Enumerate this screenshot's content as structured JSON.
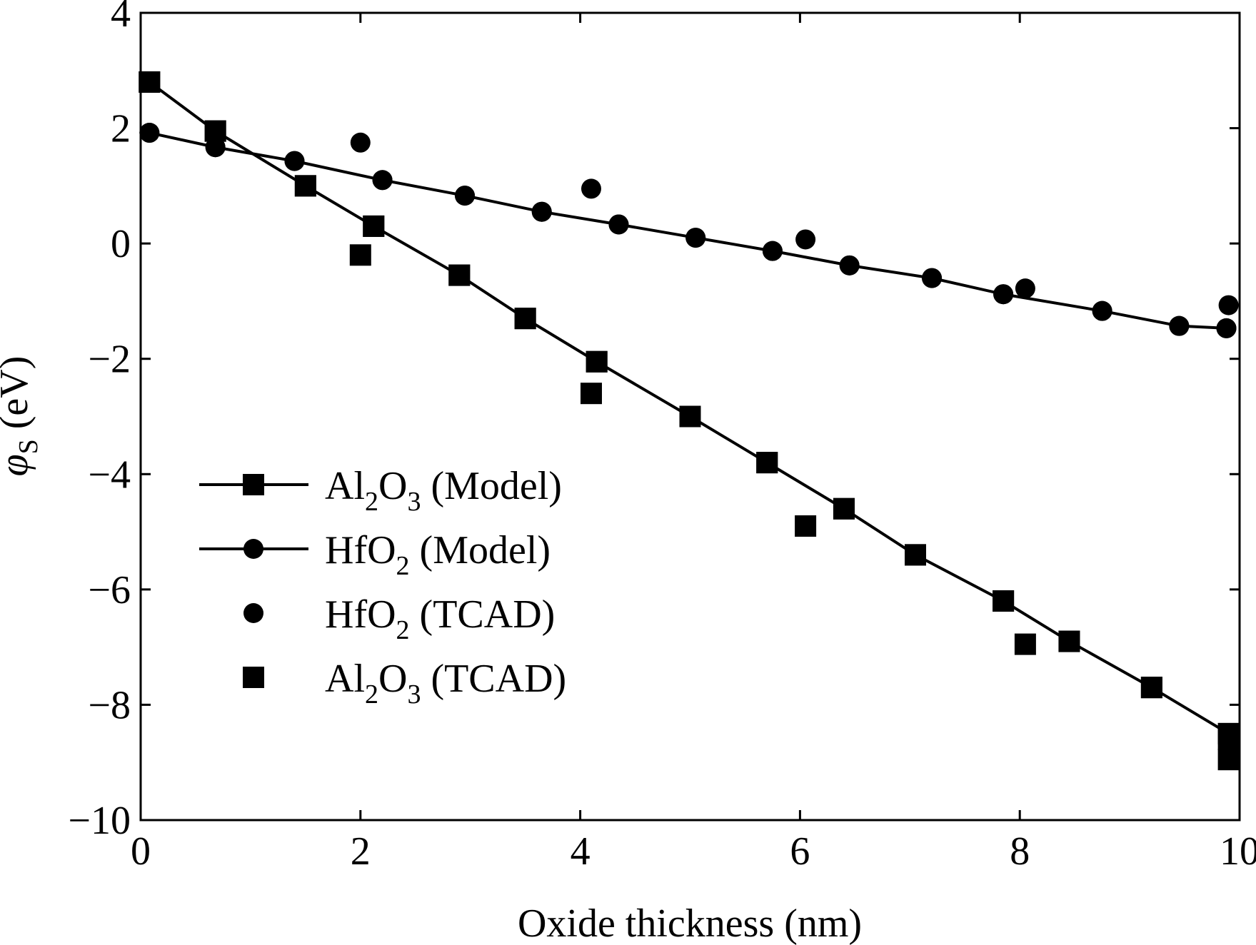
{
  "chart_data": {
    "type": "line",
    "xlabel": "Oxide thickness (nm)",
    "ylabel": {
      "symbol": "φ",
      "subscript": "S",
      "unit": "(eV)"
    },
    "xlim": [
      0,
      10
    ],
    "ylim": [
      -10,
      4
    ],
    "xticks": [
      0,
      2,
      4,
      6,
      8,
      10
    ],
    "yticks": [
      -10,
      -8,
      -6,
      -4,
      -2,
      0,
      2,
      4
    ],
    "xtick_labels": [
      "0",
      "2",
      "4",
      "6",
      "8",
      "10"
    ],
    "ytick_labels": [
      "−10",
      "−8",
      "−6",
      "−4",
      "−2",
      "0",
      "2",
      "4"
    ],
    "grid": false,
    "legend_position": "center-left",
    "series": [
      {
        "name": "Al2O3 (Model)",
        "legend": {
          "base": "Al",
          "sub1": "2",
          "mid": "O",
          "sub2": "3",
          "suffix": " (Model)"
        },
        "style": "line-square",
        "x": [
          0.08,
          0.68,
          1.5,
          2.12,
          2.9,
          3.5,
          4.15,
          5.0,
          5.7,
          6.4,
          7.05,
          7.85,
          8.45,
          9.2,
          9.9
        ],
        "y": [
          2.8,
          1.95,
          1.0,
          0.3,
          -0.55,
          -1.3,
          -2.05,
          -3.0,
          -3.8,
          -4.6,
          -5.4,
          -6.2,
          -6.9,
          -7.7,
          -8.5
        ]
      },
      {
        "name": "HfO2 (Model)",
        "legend": {
          "base": "Hf",
          "sub1": "",
          "mid": "O",
          "sub2": "2",
          "suffix": " (Model)"
        },
        "style": "line-circle",
        "x": [
          0.08,
          0.68,
          1.4,
          2.2,
          2.95,
          3.65,
          4.35,
          5.05,
          5.75,
          6.45,
          7.2,
          7.85,
          8.75,
          9.45,
          9.88
        ],
        "y": [
          1.92,
          1.67,
          1.43,
          1.1,
          0.83,
          0.55,
          0.33,
          0.1,
          -0.13,
          -0.38,
          -0.6,
          -0.88,
          -1.17,
          -1.43,
          -1.47
        ]
      },
      {
        "name": "HfO2 (TCAD)",
        "legend": {
          "base": "Hf",
          "sub1": "",
          "mid": "O",
          "sub2": "2",
          "suffix": " (TCAD)"
        },
        "style": "circle",
        "x": [
          0.08,
          0.68,
          1.4,
          2.0,
          2.2,
          2.95,
          3.65,
          4.1,
          4.35,
          5.05,
          5.75,
          6.05,
          6.45,
          7.2,
          7.85,
          8.05,
          8.75,
          9.45,
          9.88,
          9.9
        ],
        "y": [
          1.92,
          1.67,
          1.43,
          1.75,
          1.1,
          0.83,
          0.55,
          0.95,
          0.33,
          0.1,
          -0.13,
          0.07,
          -0.38,
          -0.6,
          -0.88,
          -0.78,
          -1.17,
          -1.43,
          -1.47,
          -1.07
        ]
      },
      {
        "name": "Al2O3 (TCAD)",
        "legend": {
          "base": "Al",
          "sub1": "2",
          "mid": "O",
          "sub2": "3",
          "suffix": " (TCAD)"
        },
        "style": "square",
        "x": [
          0.08,
          0.68,
          1.5,
          2.0,
          2.12,
          2.9,
          3.5,
          4.1,
          4.15,
          5.0,
          5.7,
          6.05,
          6.4,
          7.05,
          7.85,
          8.05,
          8.45,
          9.2,
          9.9,
          9.9
        ],
        "y": [
          2.8,
          1.95,
          1.0,
          -0.2,
          0.3,
          -0.55,
          -1.3,
          -2.6,
          -2.05,
          -3.0,
          -3.8,
          -4.9,
          -4.6,
          -5.4,
          -6.2,
          -6.95,
          -6.9,
          -7.7,
          -8.6,
          -8.95
        ]
      }
    ]
  }
}
